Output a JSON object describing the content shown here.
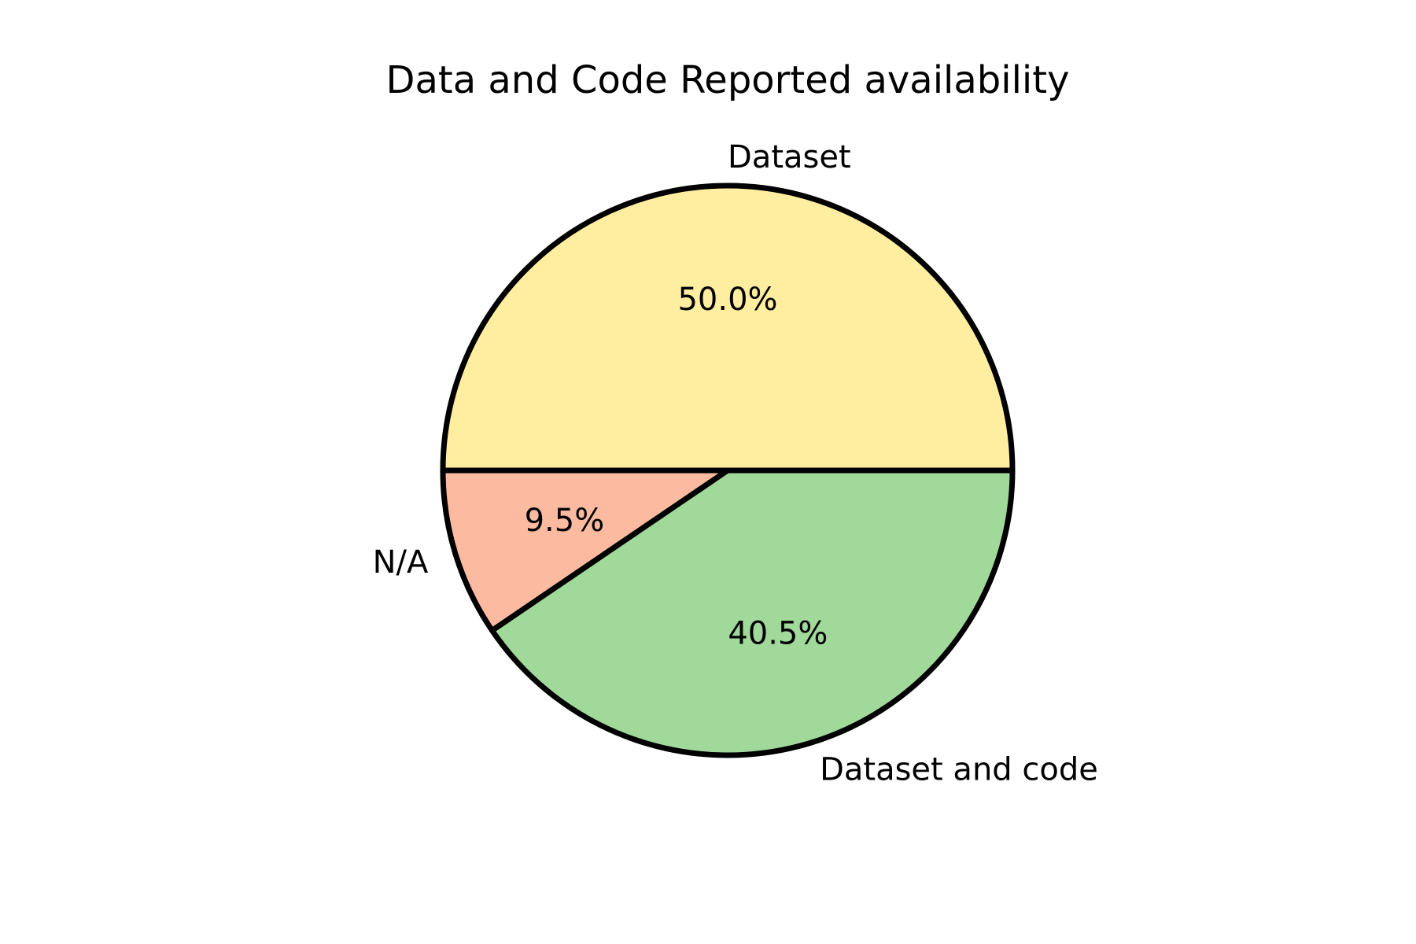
{
  "chart_data": {
    "type": "pie",
    "title": "Data and Code Reported availability",
    "slices": [
      {
        "label": "Dataset",
        "value": 50.0,
        "pct_label": "50.0%",
        "color": "#ffeda0"
      },
      {
        "label": "N/A",
        "value": 9.5,
        "pct_label": "9.5%",
        "color": "#fcbba1"
      },
      {
        "label": "Dataset and code",
        "value": 40.5,
        "pct_label": "40.5%",
        "color": "#a1d99b"
      }
    ],
    "start_angle_deg": 0,
    "direction": "counterclockwise",
    "edge_color": "#000000"
  }
}
